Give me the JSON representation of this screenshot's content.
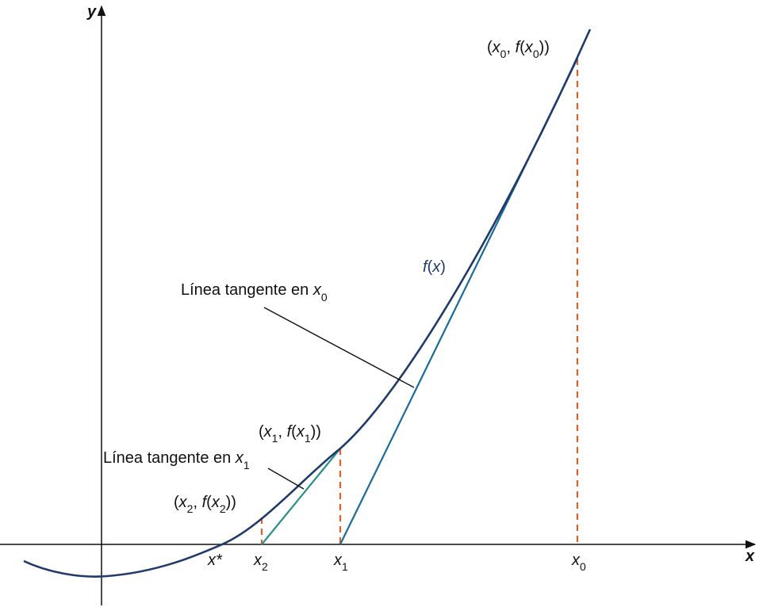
{
  "axes": {
    "x_label": "x",
    "y_label": "y"
  },
  "curve": {
    "label_f": "f",
    "label_x": "x"
  },
  "annotations": {
    "tangent_x0": {
      "text": "Línea tangente en ",
      "var": "x",
      "sub": "0"
    },
    "tangent_x1": {
      "text": "Línea tangente en ",
      "var": "x",
      "sub": "1"
    }
  },
  "points": {
    "p0": {
      "var": "x",
      "sub": "0",
      "f": "f"
    },
    "p1": {
      "var": "x",
      "sub": "1",
      "f": "f"
    },
    "p2": {
      "var": "x",
      "sub": "2",
      "f": "f"
    }
  },
  "ticks": {
    "root": "x*",
    "x2": {
      "var": "x",
      "sub": "2"
    },
    "x1": {
      "var": "x",
      "sub": "1"
    },
    "x0": {
      "var": "x",
      "sub": "0"
    }
  },
  "colors": {
    "curve": "#1f3a6b",
    "tangent_x0": "#1a6b99",
    "tangent_x1": "#2a8f8a",
    "dashed": "#e0602a",
    "axis": "#111111"
  }
}
